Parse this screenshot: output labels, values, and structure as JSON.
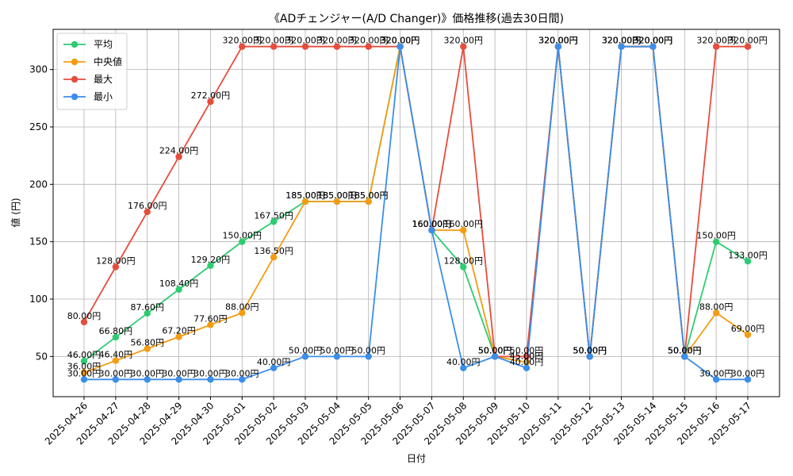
{
  "chart_data": {
    "type": "line",
    "title": "《ADチェンジャー(A/D Changer)》価格推移(過去30日間)",
    "xlabel": "日付",
    "ylabel": "値 (円)",
    "ylim": [
      15,
      335
    ],
    "yticks": [
      50,
      100,
      150,
      200,
      250,
      300
    ],
    "grid": true,
    "legend_position": "top-left",
    "label_suffix": "円",
    "categories": [
      "2025-04-26",
      "2025-04-27",
      "2025-04-28",
      "2025-04-29",
      "2025-04-30",
      "2025-05-01",
      "2025-05-02",
      "2025-05-03",
      "2025-05-04",
      "2025-05-05",
      "2025-05-06",
      "2025-05-07",
      "2025-05-08",
      "2025-05-09",
      "2025-05-10",
      "2025-05-11",
      "2025-05-12",
      "2025-05-13",
      "2025-05-14",
      "2025-05-15",
      "2025-05-16",
      "2025-05-17"
    ],
    "series": [
      {
        "name": "平均",
        "color": "#2ecc71",
        "values": [
          46.0,
          66.8,
          87.6,
          108.4,
          129.2,
          150.0,
          167.5,
          185.0,
          185.0,
          185.0,
          320.0,
          160.0,
          128.0,
          50.0,
          45.0,
          320.0,
          50.0,
          320.0,
          320.0,
          50.0,
          150.0,
          133.0
        ]
      },
      {
        "name": "中央値",
        "color": "#f39c12",
        "values": [
          36.0,
          46.4,
          56.8,
          67.2,
          77.6,
          88.0,
          136.5,
          185.0,
          185.0,
          185.0,
          320.0,
          160.0,
          160.0,
          50.0,
          45.0,
          320.0,
          50.0,
          320.0,
          320.0,
          50.0,
          88.0,
          69.0
        ]
      },
      {
        "name": "最大",
        "color": "#e74c3c",
        "values": [
          80.0,
          128.0,
          176.0,
          224.0,
          272.0,
          320.0,
          320.0,
          320.0,
          320.0,
          320.0,
          320.0,
          160.0,
          320.0,
          50.0,
          50.0,
          320.0,
          50.0,
          320.0,
          320.0,
          50.0,
          320.0,
          320.0
        ]
      },
      {
        "name": "最小",
        "color": "#3b8eea",
        "values": [
          30.0,
          30.0,
          30.0,
          30.0,
          30.0,
          30.0,
          40.0,
          50.0,
          50.0,
          50.0,
          320.0,
          160.0,
          40.0,
          50.0,
          40.0,
          320.0,
          50.0,
          320.0,
          320.0,
          50.0,
          30.0,
          30.0
        ]
      }
    ]
  }
}
